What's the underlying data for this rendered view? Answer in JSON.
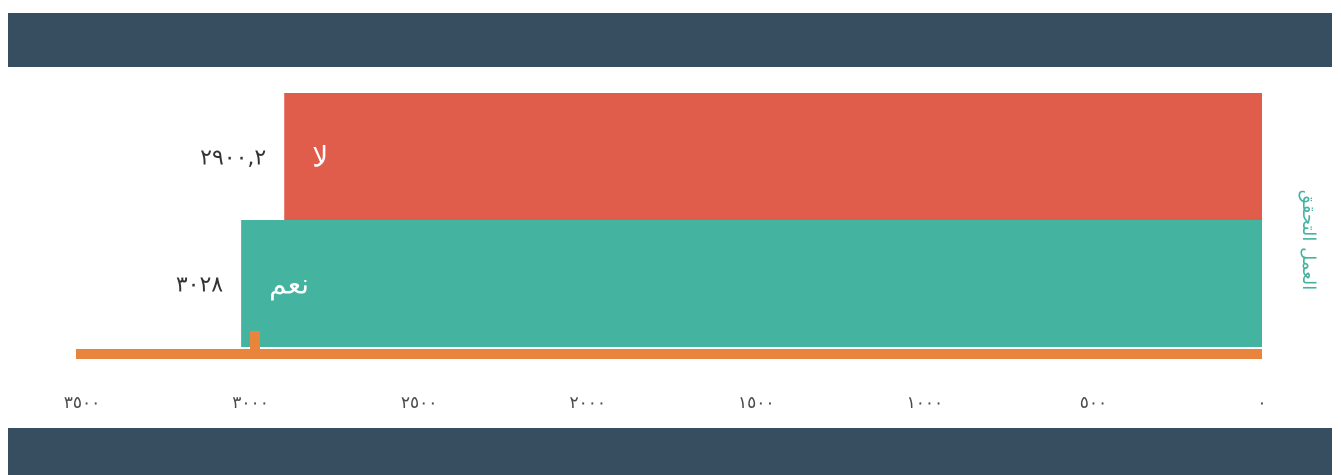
{
  "header": {
    "title": ""
  },
  "colors": {
    "band": "#364e5f",
    "axis": "#e8843c",
    "bar_no": "#e05c4b",
    "bar_yes": "#44b39f"
  },
  "chart_data": {
    "type": "bar",
    "orientation": "horizontal",
    "x_direction": "right-to-left",
    "categories": [
      "لا",
      "نعم"
    ],
    "values": [
      2900.2,
      3028
    ],
    "value_labels": [
      "٢٩٠٠,٢",
      "٣٠٢٨"
    ],
    "colors": [
      "#e05c4b",
      "#44b39f"
    ],
    "xlim": [
      0,
      3500
    ],
    "xticks": [
      0,
      500,
      1000,
      1500,
      2000,
      2500,
      3000,
      3500
    ],
    "xtick_labels": [
      "٠",
      "٥٠٠",
      "١٠٠٠",
      "١٥٠٠",
      "٢٠٠٠",
      "٢٥٠٠",
      "٣٠٠٠",
      "٣٥٠٠"
    ],
    "ylabel": "العمل التحقق",
    "grid": false,
    "legend": "none"
  }
}
